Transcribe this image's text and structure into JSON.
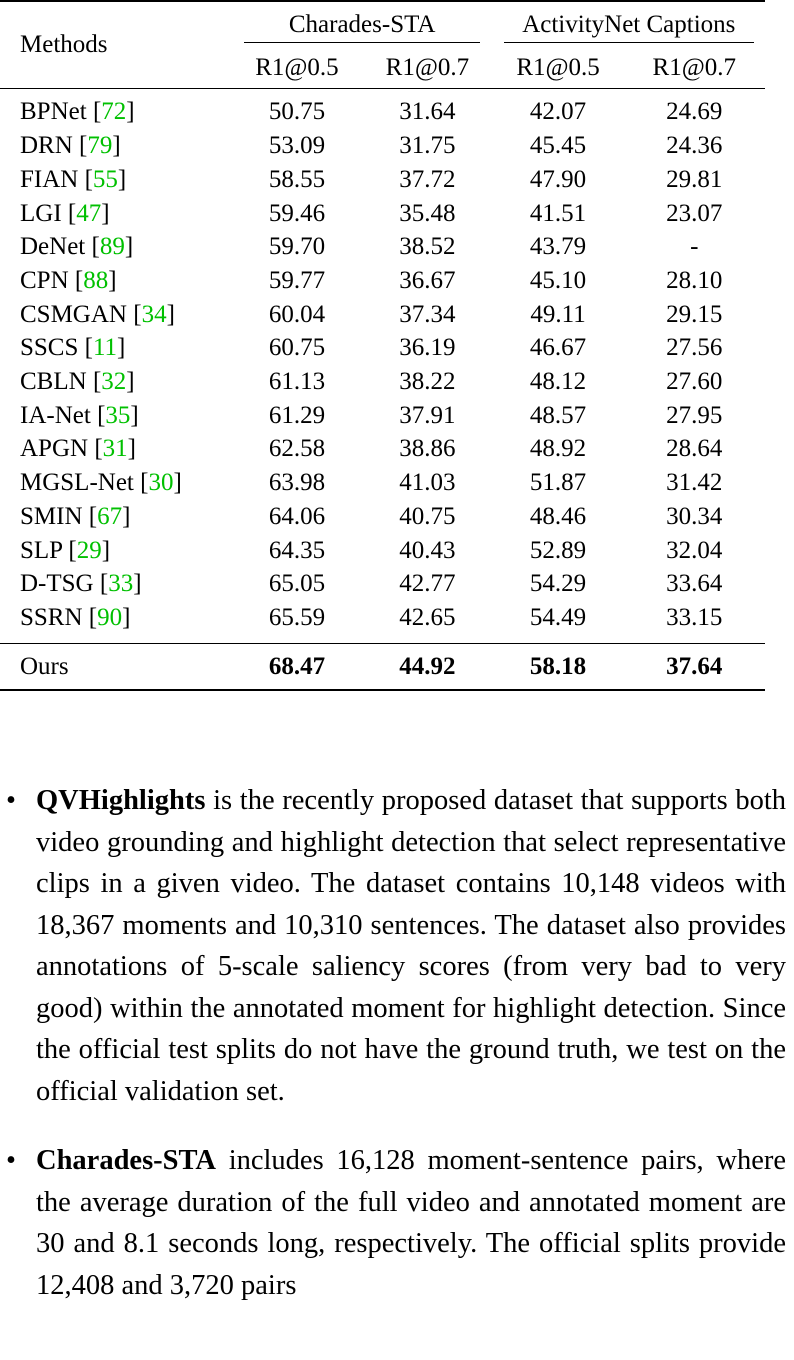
{
  "table": {
    "methods_header": "Methods",
    "groups": [
      "Charades-STA",
      "ActivityNet Captions"
    ],
    "metrics": [
      "R1@0.5",
      "R1@0.7",
      "R1@0.5",
      "R1@0.7"
    ],
    "rows": [
      {
        "method": "BPNet",
        "cite": "72",
        "values": [
          "50.75",
          "31.64",
          "42.07",
          "24.69"
        ]
      },
      {
        "method": "DRN",
        "cite": "79",
        "values": [
          "53.09",
          "31.75",
          "45.45",
          "24.36"
        ]
      },
      {
        "method": "FIAN",
        "cite": "55",
        "values": [
          "58.55",
          "37.72",
          "47.90",
          "29.81"
        ]
      },
      {
        "method": "LGI",
        "cite": "47",
        "values": [
          "59.46",
          "35.48",
          "41.51",
          "23.07"
        ]
      },
      {
        "method": "DeNet",
        "cite": "89",
        "values": [
          "59.70",
          "38.52",
          "43.79",
          "-"
        ]
      },
      {
        "method": "CPN",
        "cite": "88",
        "values": [
          "59.77",
          "36.67",
          "45.10",
          "28.10"
        ]
      },
      {
        "method": "CSMGAN",
        "cite": "34",
        "values": [
          "60.04",
          "37.34",
          "49.11",
          "29.15"
        ]
      },
      {
        "method": "SSCS",
        "cite": "11",
        "values": [
          "60.75",
          "36.19",
          "46.67",
          "27.56"
        ]
      },
      {
        "method": "CBLN",
        "cite": "32",
        "values": [
          "61.13",
          "38.22",
          "48.12",
          "27.60"
        ]
      },
      {
        "method": "IA-Net",
        "cite": "35",
        "values": [
          "61.29",
          "37.91",
          "48.57",
          "27.95"
        ]
      },
      {
        "method": "APGN",
        "cite": "31",
        "values": [
          "62.58",
          "38.86",
          "48.92",
          "28.64"
        ]
      },
      {
        "method": "MGSL-Net",
        "cite": "30",
        "values": [
          "63.98",
          "41.03",
          "51.87",
          "31.42"
        ]
      },
      {
        "method": "SMIN",
        "cite": "67",
        "values": [
          "64.06",
          "40.75",
          "48.46",
          "30.34"
        ]
      },
      {
        "method": "SLP",
        "cite": "29",
        "values": [
          "64.35",
          "40.43",
          "52.89",
          "32.04"
        ]
      },
      {
        "method": "D-TSG",
        "cite": "33",
        "values": [
          "65.05",
          "42.77",
          "54.29",
          "33.64"
        ]
      },
      {
        "method": "SSRN",
        "cite": "90",
        "values": [
          "65.59",
          "42.65",
          "54.49",
          "33.15"
        ]
      }
    ],
    "ours": {
      "method": "Ours",
      "values": [
        "68.47",
        "44.92",
        "58.18",
        "37.64"
      ]
    }
  },
  "bullets": [
    {
      "mark": "•",
      "term": "QVHighlights",
      "text": " is the recently proposed dataset that supports both video grounding and highlight detection that select representative clips in a given video.  The dataset contains 10,148 videos with 18,367 moments and 10,310 sentences.  The dataset also provides an­notations of 5-scale saliency scores (from very bad to very good) within the annotated moment for highlight detection. Since the official test splits do not have the ground truth, we test on the official validation set."
    },
    {
      "mark": "•",
      "term": "Charades-STA",
      "text": " includes 16,128 moment-sentence pairs, where the average duration of the full video and annotated moment are 30 and 8.1 seconds long, respec­tively. The official splits provide 12,408 and 3,720 pairs"
    }
  ]
}
